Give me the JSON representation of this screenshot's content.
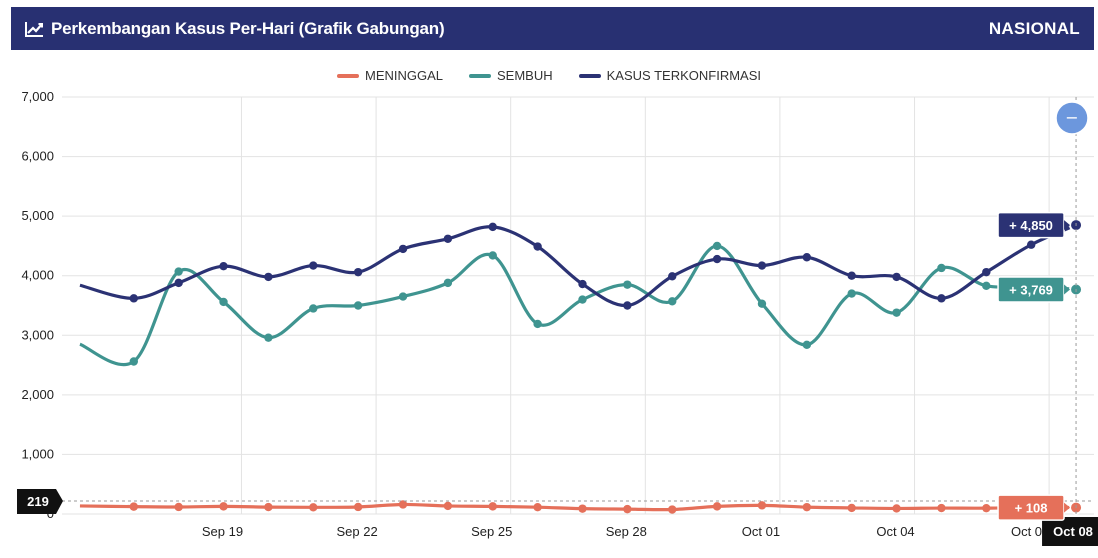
{
  "header": {
    "title": "Perkembangan Kasus Per-Hari (Grafik Gabungan)",
    "region": "NASIONAL",
    "icon": "line-chart-icon"
  },
  "colors": {
    "header_bg": "#283072",
    "meninggal": "#e5705a",
    "sembuh": "#3f9490",
    "kasus": "#2b3274"
  },
  "chart_data": {
    "type": "line",
    "title": "Perkembangan Kasus Per-Hari (Grafik Gabungan)",
    "ylim": [
      0,
      7000
    ],
    "yticks": [
      "0",
      "1,000",
      "2,000",
      "3,000",
      "4,000",
      "5,000",
      "6,000",
      "7,000"
    ],
    "ytick_values": [
      0,
      1000,
      2000,
      3000,
      4000,
      5000,
      6000,
      7000
    ],
    "x": [
      "Sep 16",
      "Sep 17",
      "Sep 18",
      "Sep 19",
      "Sep 20",
      "Sep 21",
      "Sep 22",
      "Sep 23",
      "Sep 24",
      "Sep 25",
      "Sep 26",
      "Sep 27",
      "Sep 28",
      "Sep 29",
      "Sep 30",
      "Oct 01",
      "Oct 02",
      "Oct 03",
      "Oct 04",
      "Oct 05",
      "Oct 06",
      "Oct 07",
      "Oct 08"
    ],
    "x_index": [
      15.4,
      16.6,
      17.6,
      18.6,
      19.6,
      20.6,
      21.6,
      22.6,
      23.6,
      24.6,
      25.6,
      26.6,
      27.6,
      28.6,
      29.6,
      30.6,
      31.6,
      32.6,
      33.6,
      34.6,
      35.6,
      36.6,
      37.6
    ],
    "xtick_labels": [
      "Sep 19",
      "Sep 22",
      "Sep 25",
      "Sep 28",
      "Oct 01",
      "Oct 04",
      "Oct 07"
    ],
    "xtick_index": [
      19,
      22,
      25,
      28,
      31,
      34,
      37
    ],
    "series": [
      {
        "name": "MENINGGAL",
        "values": [
          135,
          124,
          118,
          128,
          116,
          112,
          118,
          160,
          135,
          128,
          114,
          90,
          82,
          75,
          128,
          145,
          115,
          102,
          93,
          100,
          98,
          115,
          108
        ]
      },
      {
        "name": "SEMBUH",
        "values": [
          2850,
          2560,
          4070,
          3560,
          2960,
          3450,
          3500,
          3650,
          3880,
          4340,
          3190,
          3600,
          3850,
          3570,
          4500,
          3530,
          2840,
          3700,
          3380,
          4130,
          3830,
          3830,
          3769
        ]
      },
      {
        "name": "KASUS TERKONFIRMASI",
        "values": [
          3840,
          3620,
          3880,
          4160,
          3980,
          4170,
          4060,
          4450,
          4620,
          4820,
          4490,
          3860,
          3500,
          3990,
          4280,
          4170,
          4310,
          4000,
          3980,
          3620,
          4060,
          4520,
          4850
        ]
      }
    ],
    "callouts": [
      {
        "series": "KASUS TERKONFIRMASI",
        "label": "+ 4,850"
      },
      {
        "series": "SEMBUH",
        "label": "+ 3,769"
      },
      {
        "series": "MENINGGAL",
        "label": "+ 108"
      }
    ],
    "crosshair_y_label": "219",
    "crosshair_y_value": 219,
    "crosshair_x_label": "Oct 08",
    "zoom_button": "−",
    "legend_position": "top-center",
    "grid": true
  }
}
